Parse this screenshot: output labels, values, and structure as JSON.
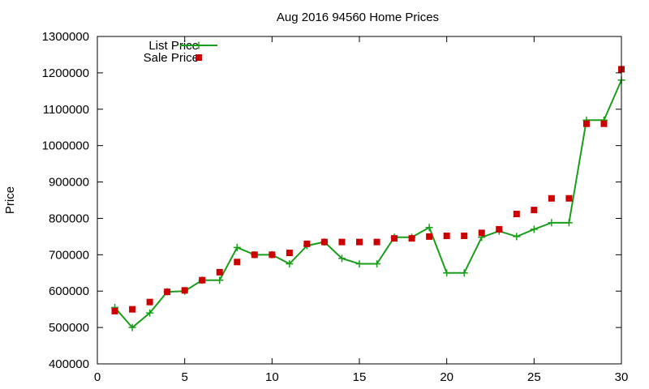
{
  "chart_data": {
    "type": "line",
    "title": "Aug 2016 94560 Home Prices",
    "xlabel": "",
    "ylabel": "Price",
    "xlim": [
      0,
      30
    ],
    "ylim": [
      400000,
      1300000
    ],
    "xticks": [
      "0",
      "5",
      "10",
      "15",
      "20",
      "25",
      "30"
    ],
    "yticks": [
      "400000",
      "500000",
      "600000",
      "700000",
      "800000",
      "900000",
      "1000000",
      "1100000",
      "1200000",
      "1300000"
    ],
    "grid": false,
    "legend_position": "top-left",
    "series": [
      {
        "name": "List Price",
        "style": "line-with-plus-markers",
        "color": "#1a9e1a",
        "x": [
          1,
          2,
          3,
          4,
          5,
          6,
          7,
          8,
          9,
          10,
          11,
          12,
          13,
          14,
          15,
          16,
          17,
          18,
          19,
          20,
          21,
          22,
          23,
          24,
          25,
          26,
          27,
          28,
          29,
          30
        ],
        "y": [
          555000,
          500000,
          540000,
          598000,
          600000,
          630000,
          630000,
          720000,
          700000,
          700000,
          675000,
          725000,
          735000,
          690000,
          675000,
          675000,
          748000,
          748000,
          775000,
          650000,
          650000,
          748000,
          765000,
          750000,
          770000,
          788000,
          788000,
          1070000,
          1070000,
          1180000
        ]
      },
      {
        "name": "Sale Price",
        "style": "square-markers",
        "color": "#cc0000",
        "x": [
          1,
          2,
          3,
          4,
          5,
          6,
          7,
          8,
          9,
          10,
          11,
          12,
          13,
          14,
          15,
          16,
          17,
          18,
          19,
          20,
          21,
          22,
          23,
          24,
          25,
          26,
          27,
          28,
          29,
          30
        ],
        "y": [
          545000,
          550000,
          570000,
          598000,
          602000,
          630000,
          652000,
          680000,
          700000,
          700000,
          705000,
          730000,
          735000,
          735000,
          735000,
          735000,
          745000,
          745000,
          750000,
          752000,
          752000,
          760000,
          770000,
          812000,
          823000,
          855000,
          855000,
          1060000,
          1060000,
          1210000
        ]
      }
    ]
  }
}
